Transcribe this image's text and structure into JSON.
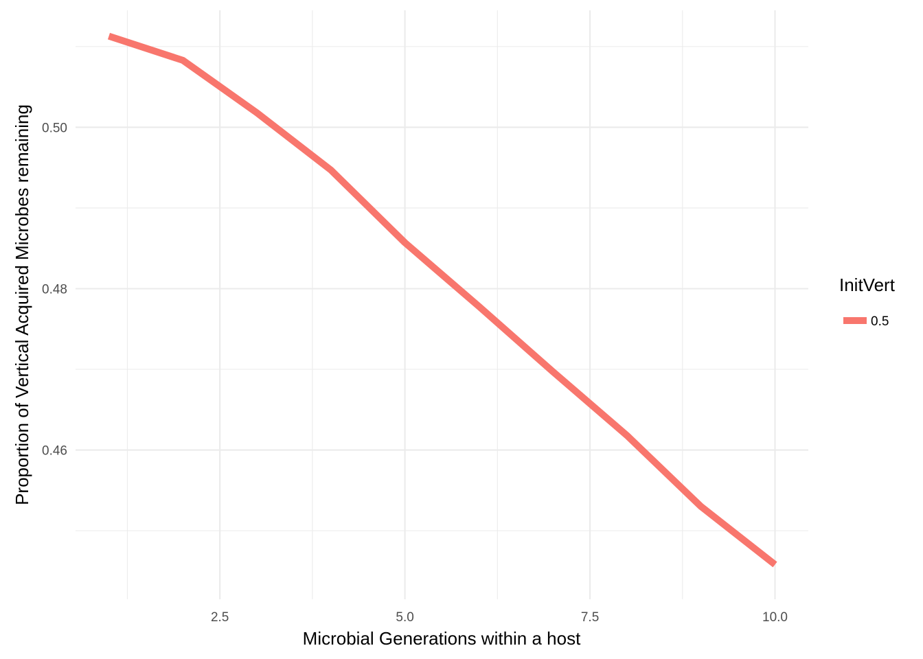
{
  "chart_data": {
    "type": "line",
    "title": "",
    "xlabel": "Microbial Generations within a host",
    "ylabel": "Proportion of Vertical Acquired Microbes remaining",
    "xlim": [
      0.55,
      10.45
    ],
    "ylim": [
      0.4415,
      0.5145
    ],
    "x_ticks": [
      2.5,
      5.0,
      7.5,
      10.0
    ],
    "x_tick_labels": [
      "2.5",
      "5.0",
      "7.5",
      "10.0"
    ],
    "y_ticks": [
      0.46,
      0.48,
      0.5
    ],
    "y_tick_labels": [
      "0.46",
      "0.48",
      "0.50"
    ],
    "grid": true,
    "legend": {
      "title": "InitVert",
      "position": "right",
      "entries": [
        "0.5"
      ]
    },
    "series": [
      {
        "name": "0.5",
        "color": "#F8766D",
        "x": [
          1,
          2,
          3,
          4,
          5,
          6,
          7,
          8,
          9,
          10
        ],
        "y": [
          0.5113,
          0.5083,
          0.5018,
          0.4947,
          0.4857,
          0.4778,
          0.4697,
          0.4618,
          0.453,
          0.4458
        ]
      }
    ]
  }
}
